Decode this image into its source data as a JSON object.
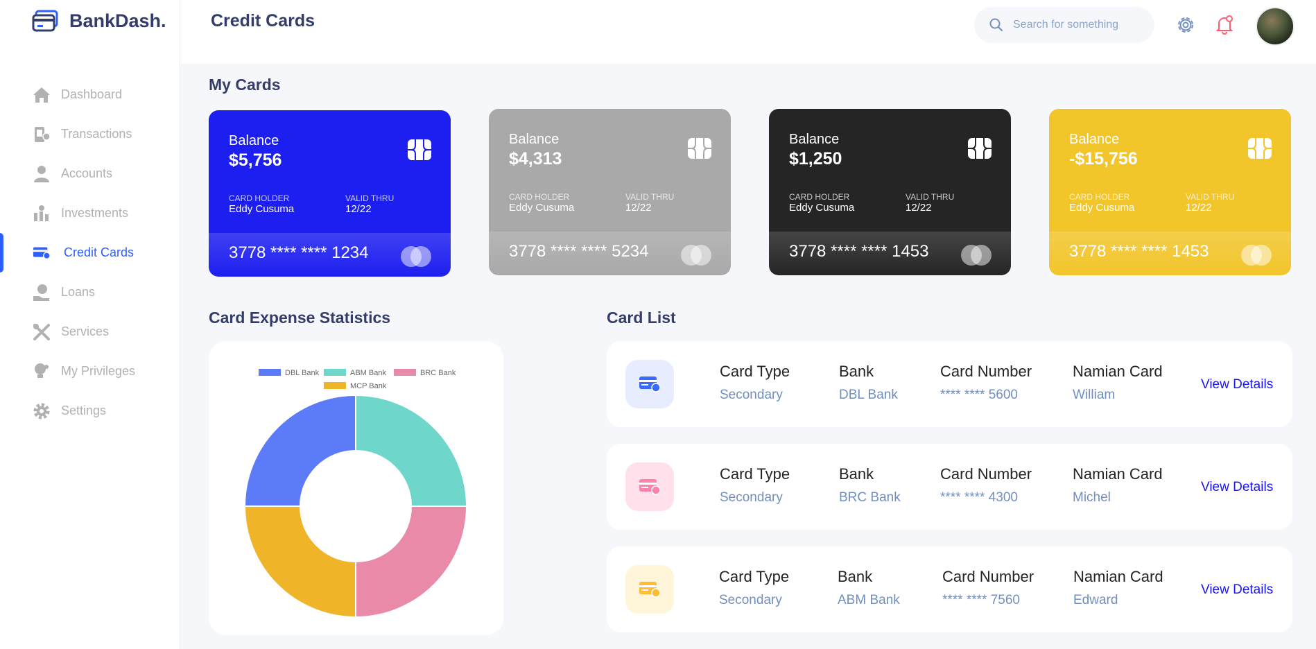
{
  "app": {
    "brand": "BankDash.",
    "page_title": "Credit Cards"
  },
  "search": {
    "placeholder": "Search for something"
  },
  "sidebar": {
    "items": [
      {
        "label": "Dashboard",
        "icon": "home-icon"
      },
      {
        "label": "Transactions",
        "icon": "transfer-icon"
      },
      {
        "label": "Accounts",
        "icon": "user-icon"
      },
      {
        "label": "Investments",
        "icon": "investment-icon"
      },
      {
        "label": "Credit Cards",
        "icon": "credit-card-icon",
        "active": true
      },
      {
        "label": "Loans",
        "icon": "loan-icon"
      },
      {
        "label": "Services",
        "icon": "service-icon"
      },
      {
        "label": "My Privileges",
        "icon": "privilege-icon"
      },
      {
        "label": "Settings",
        "icon": "settings-icon"
      }
    ]
  },
  "sections": {
    "my_cards": "My Cards",
    "expense_stats": "Card Expense Statistics",
    "card_list": "Card List"
  },
  "cards": [
    {
      "balance_label": "Balance",
      "balance": "$5,756",
      "holder_label": "CARD HOLDER",
      "holder": "Eddy Cusuma",
      "valid_label": "VALID THRU",
      "valid": "12/22",
      "number": "3778 **** **** 1234",
      "color": "#1d1ff0"
    },
    {
      "balance_label": "Balance",
      "balance": "$4,313",
      "holder_label": "CARD HOLDER",
      "holder": "Eddy Cusuma",
      "valid_label": "VALID THRU",
      "valid": "12/22",
      "number": "3778 **** **** 5234",
      "color": "#a9a9a9"
    },
    {
      "balance_label": "Balance",
      "balance": "$1,250",
      "holder_label": "CARD HOLDER",
      "holder": "Eddy Cusuma",
      "valid_label": "VALID THRU",
      "valid": "12/22",
      "number": "3778 **** **** 1453",
      "color": "#252525"
    },
    {
      "balance_label": "Balance",
      "balance": "-$15,756",
      "holder_label": "CARD HOLDER",
      "holder": "Eddy Cusuma",
      "valid_label": "VALID THRU",
      "valid": "12/22",
      "number": "3778 **** **** 1453",
      "color": "#f2c52b"
    }
  ],
  "chart_data": {
    "type": "pie",
    "donut": true,
    "categories": [
      "DBL Bank",
      "ABM Bank",
      "BRC Bank",
      "MCP Bank"
    ],
    "values": [
      25,
      25,
      25,
      25
    ],
    "colors": [
      "#5b7bf9",
      "#6fd6cb",
      "#e98aa8",
      "#f0b429"
    ],
    "legend": "top",
    "title": ""
  },
  "card_list": {
    "headers": {
      "type": "Card Type",
      "bank": "Bank",
      "number": "Card Number",
      "name": "Namian Card"
    },
    "action_label": "View Details",
    "rows": [
      {
        "type": "Secondary",
        "bank": "DBL Bank",
        "number": "**** **** 5600",
        "name": "William",
        "icon_bg": "#e7edff",
        "icon_color": "#396aff"
      },
      {
        "type": "Secondary",
        "bank": "BRC Bank",
        "number": "**** **** 4300",
        "name": "Michel",
        "icon_bg": "#ffe0eb",
        "icon_color": "#ff82ac"
      },
      {
        "type": "Secondary",
        "bank": "ABM Bank",
        "number": "**** **** 7560",
        "name": "Edward",
        "icon_bg": "#fff5d9",
        "icon_color": "#ffbb38"
      }
    ]
  }
}
